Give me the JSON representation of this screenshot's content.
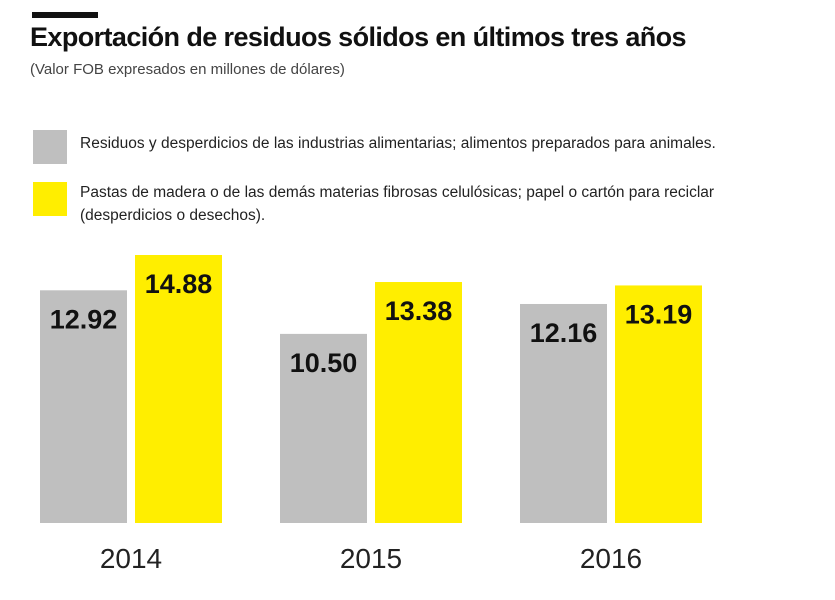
{
  "header": {
    "title": "Exportación de residuos sólidos en últimos tres años",
    "subtitle": "(Valor FOB expresados en millones de dólares)"
  },
  "legend": [
    {
      "label": "Residuos y desperdicios de las industrias alimentarias; alimentos preparados para animales.",
      "color": "#bfbfbf"
    },
    {
      "label_line1": "Pastas de madera o de las demás materias fibrosas celulósicas; papel o cartón para reciclar",
      "label_line2": "(desperdicios o desechos).",
      "color": "#ffee00"
    }
  ],
  "chart_data": {
    "type": "bar",
    "title": "Exportación de residuos sólidos en últimos tres años",
    "subtitle": "(Valor FOB expresados en millones de dólares)",
    "categories": [
      "2014",
      "2015",
      "2016"
    ],
    "series": [
      {
        "name": "Residuos y desperdicios de las industrias alimentarias; alimentos preparados para animales.",
        "color": "#bfbfbf",
        "values": [
          12.92,
          10.5,
          12.16
        ],
        "labels": [
          "12.92",
          "10.50",
          "12.16"
        ]
      },
      {
        "name": "Pastas de madera o de las demás materias fibrosas celulósicas; papel o cartón para reciclar (desperdicios o desechos).",
        "color": "#ffee00",
        "values": [
          14.88,
          13.38,
          13.19
        ],
        "labels": [
          "14.88",
          "13.38",
          "13.19"
        ]
      }
    ],
    "xlabel": "",
    "ylabel": "",
    "grid": false,
    "ylim": [
      0,
      15
    ]
  }
}
